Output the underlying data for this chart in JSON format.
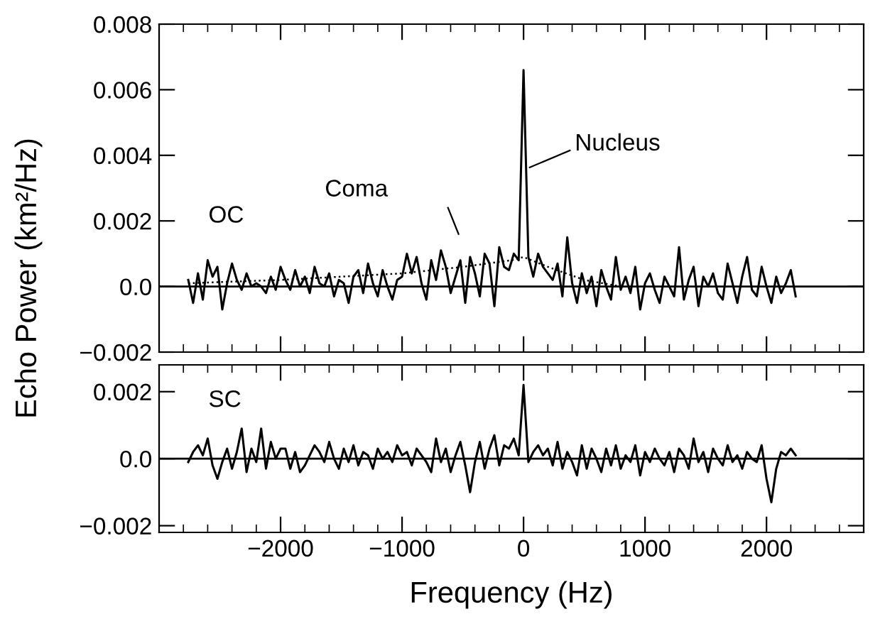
{
  "chart_data": [
    {
      "type": "line",
      "ylabel": "Echo Power (km²/Hz)",
      "xlim": [
        -3000,
        2800
      ],
      "ylim": [
        -0.002,
        0.008
      ],
      "xticks": [
        -2000,
        -1000,
        0,
        1000,
        2000
      ],
      "yticks": [
        {
          "value": -0.002,
          "label": "−0.002"
        },
        {
          "value": 0,
          "label": "0.0"
        },
        {
          "value": 0.002,
          "label": "0.002"
        },
        {
          "value": 0.004,
          "label": "0.004"
        },
        {
          "value": 0.006,
          "label": "0.006"
        },
        {
          "value": 0.008,
          "label": "0.008"
        }
      ],
      "tick_labels": "y",
      "grid": false,
      "legend": false,
      "ref_lines": [
        {
          "axis": "y",
          "value": 0,
          "color": "#000000"
        }
      ],
      "annotations": [
        "OC",
        "Coma",
        "Nucleus"
      ],
      "series": [
        {
          "color": "#000000",
          "line_style": "solid",
          "x": [
            -2760,
            -2720,
            -2680,
            -2640,
            -2600,
            -2560,
            -2520,
            -2480,
            -2440,
            -2400,
            -2360,
            -2320,
            -2280,
            -2240,
            -2200,
            -2160,
            -2120,
            -2080,
            -2040,
            -2000,
            -1960,
            -1920,
            -1880,
            -1840,
            -1800,
            -1760,
            -1720,
            -1680,
            -1640,
            -1600,
            -1560,
            -1520,
            -1480,
            -1440,
            -1400,
            -1360,
            -1320,
            -1280,
            -1240,
            -1200,
            -1160,
            -1120,
            -1080,
            -1040,
            -1000,
            -960,
            -920,
            -880,
            -840,
            -800,
            -760,
            -720,
            -680,
            -640,
            -600,
            -560,
            -520,
            -480,
            -440,
            -400,
            -360,
            -320,
            -280,
            -240,
            -200,
            -160,
            -120,
            -80,
            -40,
            0,
            40,
            80,
            120,
            160,
            200,
            240,
            280,
            320,
            360,
            400,
            440,
            480,
            520,
            560,
            600,
            640,
            680,
            720,
            760,
            800,
            840,
            880,
            920,
            960,
            1000,
            1040,
            1080,
            1120,
            1160,
            1200,
            1240,
            1280,
            1320,
            1360,
            1400,
            1440,
            1480,
            1520,
            1560,
            1600,
            1640,
            1680,
            1720,
            1760,
            1800,
            1840,
            1880,
            1920,
            1960,
            2000,
            2040,
            2080,
            2120,
            2160,
            2200,
            2240
          ],
          "values": [
            0.0002,
            -0.0005,
            0.0004,
            -0.0004,
            0.0008,
            0.0003,
            0.0006,
            -0.0007,
            0.0001,
            0.0007,
            0.0002,
            -0.0001,
            0.0004,
            0.0,
            0.0001,
            0.0,
            -0.0002,
            0.0003,
            -0.0001,
            0.0006,
            0.0002,
            -0.0001,
            0.0005,
            0.0,
            0.0003,
            -0.0002,
            0.0006,
            0.0001,
            0.0,
            0.0004,
            -0.0003,
            0.0002,
            0.0001,
            -0.0005,
            0.0003,
            0.0005,
            -0.0002,
            0.0007,
            0.0001,
            -0.0003,
            0.0005,
            0.0,
            -0.0004,
            0.0002,
            0.0003,
            0.001,
            0.0004,
            0.0009,
            0.0001,
            -0.0004,
            0.0008,
            0.0002,
            0.0011,
            0.0006,
            -0.0002,
            0.0003,
            0.0008,
            -0.0005,
            0.0009,
            0.0004,
            -0.0003,
            0.001,
            0.0007,
            -0.0006,
            0.0012,
            0.0006,
            0.0005,
            0.001,
            0.0008,
            0.0066,
            0.0009,
            0.0003,
            0.001,
            0.0006,
            0.0004,
            0.0002,
            0.0007,
            -0.0003,
            0.0015,
            0.0001,
            -0.0005,
            0.0004,
            -0.0002,
            0.0003,
            -0.0006,
            0.0005,
            0.0,
            -0.0004,
            0.0009,
            -0.0001,
            0.0003,
            -0.0002,
            0.0006,
            -0.0007,
            0.0001,
            0.0004,
            -0.0001,
            -0.0005,
            0.0003,
            0.0,
            -0.0003,
            0.0012,
            -0.0004,
            0.0002,
            0.0006,
            -0.0006,
            0.0003,
            0.0,
            0.0004,
            -0.0002,
            -0.0004,
            0.0007,
            0.0001,
            -0.0005,
            0.0003,
            0.0009,
            -0.0001,
            -0.0003,
            0.0006,
            0.0,
            -0.0005,
            0.0003,
            -0.0002,
            0.0001,
            0.0005,
            -0.0003
          ]
        },
        {
          "color": "#000000",
          "line_style": "dotted",
          "x": [
            -2760,
            -2000,
            -1000,
            -500,
            -100,
            0,
            200,
            500,
            800
          ],
          "values": [
            0.0001,
            0.0002,
            0.0004,
            0.0006,
            0.0008,
            0.0009,
            0.0006,
            0.0002,
            0.0
          ]
        }
      ]
    },
    {
      "type": "line",
      "xlabel": "Frequency (Hz)",
      "xlim": [
        -3000,
        2800
      ],
      "ylim": [
        -0.0022,
        0.0028
      ],
      "xticks": [
        {
          "value": -2000,
          "label": "−2000"
        },
        {
          "value": -1000,
          "label": "−1000"
        },
        0,
        1000,
        2000
      ],
      "yticks": [
        {
          "value": -0.002,
          "label": "−0.002"
        },
        {
          "value": 0,
          "label": "0.0"
        },
        {
          "value": 0.002,
          "label": "0.002"
        }
      ],
      "grid": false,
      "legend": false,
      "ref_lines": [
        {
          "axis": "y",
          "value": 0,
          "color": "#000000"
        }
      ],
      "annotations": [
        "SC"
      ],
      "series": [
        {
          "color": "#000000",
          "line_style": "solid",
          "x": [
            -2760,
            -2720,
            -2680,
            -2640,
            -2600,
            -2560,
            -2520,
            -2480,
            -2440,
            -2400,
            -2360,
            -2320,
            -2280,
            -2240,
            -2200,
            -2160,
            -2120,
            -2080,
            -2040,
            -2000,
            -1960,
            -1920,
            -1880,
            -1840,
            -1800,
            -1760,
            -1720,
            -1680,
            -1640,
            -1600,
            -1560,
            -1520,
            -1480,
            -1440,
            -1400,
            -1360,
            -1320,
            -1280,
            -1240,
            -1200,
            -1160,
            -1120,
            -1080,
            -1040,
            -1000,
            -960,
            -920,
            -880,
            -840,
            -800,
            -760,
            -720,
            -680,
            -640,
            -600,
            -560,
            -520,
            -480,
            -440,
            -400,
            -360,
            -320,
            -280,
            -240,
            -200,
            -160,
            -120,
            -80,
            -40,
            0,
            40,
            80,
            120,
            160,
            200,
            240,
            280,
            320,
            360,
            400,
            440,
            480,
            520,
            560,
            600,
            640,
            680,
            720,
            760,
            800,
            840,
            880,
            920,
            960,
            1000,
            1040,
            1080,
            1120,
            1160,
            1200,
            1240,
            1280,
            1320,
            1360,
            1400,
            1440,
            1480,
            1520,
            1560,
            1600,
            1640,
            1680,
            1720,
            1760,
            1800,
            1840,
            1880,
            1920,
            1960,
            2000,
            2040,
            2080,
            2120,
            2160,
            2200,
            2240
          ],
          "values": [
            -0.0001,
            0.0002,
            0.0004,
            0.0001,
            0.0006,
            -0.0002,
            -0.0006,
            -0.0001,
            0.0003,
            -0.0003,
            0.0002,
            0.0009,
            -0.0004,
            0.0003,
            -0.0001,
            0.0009,
            -0.0003,
            0.0005,
            0.0,
            0.0003,
            0.0003,
            -0.0003,
            0.0002,
            -0.0004,
            -0.0002,
            0.0001,
            0.0004,
            0.0002,
            -0.0001,
            0.0005,
            0.0,
            -0.0003,
            0.0003,
            -0.0001,
            0.0004,
            -0.0002,
            0.0002,
            0.0001,
            -0.0003,
            0.0003,
            0.0,
            0.0002,
            -0.0001,
            0.0004,
            0.0001,
            0.0002,
            -0.0002,
            0.0003,
            0.0001,
            -0.0001,
            -0.0004,
            0.0006,
            -0.0001,
            0.0003,
            -0.0004,
            0.0001,
            0.0005,
            -0.0002,
            -0.001,
            -0.0001,
            0.0005,
            -0.0003,
            0.0003,
            0.0007,
            -0.0002,
            0.0004,
            0.0003,
            0.0006,
            0.0001,
            0.0022,
            -0.0001,
            0.0002,
            0.0004,
            0.0001,
            0.0003,
            -0.0002,
            0.0005,
            -0.0003,
            0.0002,
            -0.0001,
            -0.0005,
            0.0004,
            -0.0003,
            0.0003,
            0.0,
            -0.0004,
            0.0003,
            -0.0002,
            0.0004,
            -0.0003,
            0.0001,
            -0.0001,
            0.0004,
            -0.0005,
            0.0002,
            -0.0001,
            0.0003,
            0.0,
            -0.0002,
            0.0002,
            -0.0004,
            0.0003,
            0.0001,
            -0.0003,
            0.0006,
            -0.0001,
            0.0002,
            -0.0004,
            0.0003,
            0.0,
            -0.0002,
            0.0004,
            -0.0001,
            0.0001,
            -0.0003,
            0.0002,
            0.0,
            -0.0001,
            0.0004,
            -0.0006,
            -0.0013,
            -0.0003,
            0.0002,
            0.0001,
            0.0003,
            0.0001
          ]
        }
      ]
    }
  ]
}
